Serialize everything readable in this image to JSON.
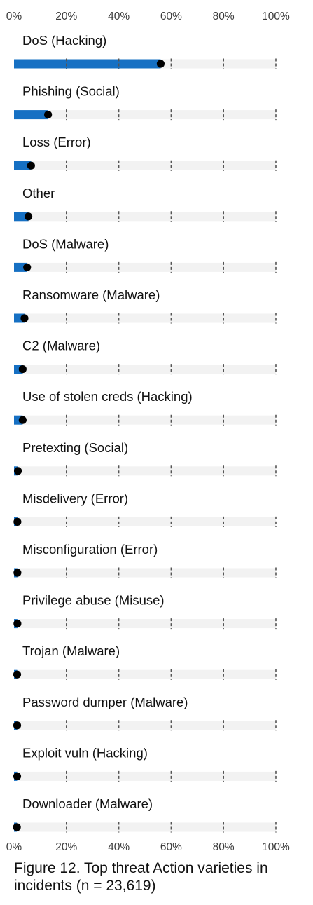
{
  "chart_data": {
    "type": "bar",
    "orientation": "horizontal",
    "categories": [
      "DoS (Hacking)",
      "Phishing (Social)",
      "Loss (Error)",
      "Other",
      "DoS (Malware)",
      "Ransomware (Malware)",
      "C2 (Malware)",
      "Use of stolen creds (Hacking)",
      "Pretexting (Social)",
      "Misdelivery (Error)",
      "Misconfiguration (Error)",
      "Privilege abuse (Misuse)",
      "Trojan (Malware)",
      "Password dumper (Malware)",
      "Exploit vuln (Hacking)",
      "Downloader (Malware)"
    ],
    "values": [
      56,
      13,
      6.5,
      5.5,
      5,
      4,
      3.3,
      3.3,
      1.5,
      1.3,
      1.3,
      1.3,
      1.2,
      1.2,
      1.2,
      1.1
    ],
    "x_ticks": [
      "0%",
      "20%",
      "40%",
      "60%",
      "80%",
      "100%"
    ],
    "xlim": [
      0,
      100
    ],
    "unit": "%",
    "grid": "dashed vertical at 20% intervals",
    "caption": "Figure 12. Top threat Action varieties in incidents (n = 23,619)",
    "colors": {
      "bar": "#1670c3",
      "track": "#f2f2f2",
      "point": "#000000",
      "grid": "#555555"
    }
  }
}
